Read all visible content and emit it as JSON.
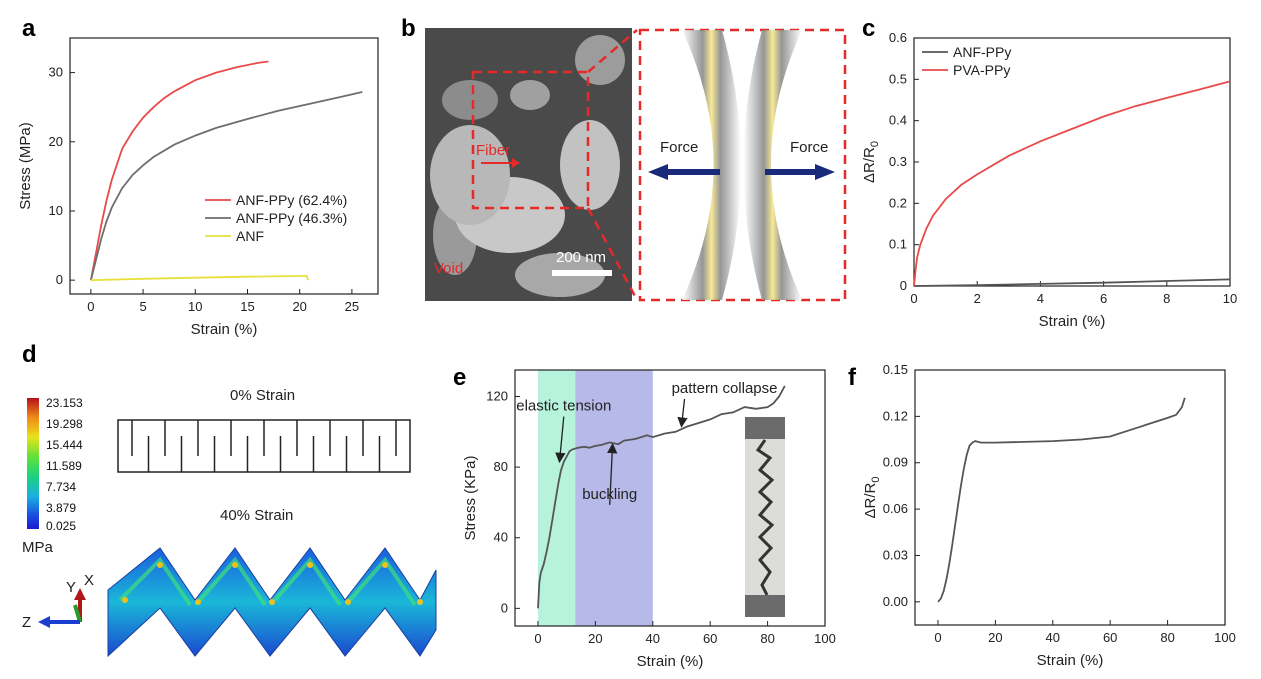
{
  "panels": {
    "a": "a",
    "b": "b",
    "c": "c",
    "d": "d",
    "e": "e",
    "f": "f"
  },
  "chart_data": [
    {
      "panel": "a",
      "type": "line",
      "xlabel": "Strain (%)",
      "ylabel": "Stress (MPa)",
      "xlim": [
        -2,
        27.5
      ],
      "ylim": [
        -2,
        35
      ],
      "xticks": [
        0,
        5,
        10,
        15,
        20,
        25
      ],
      "yticks": [
        0,
        10,
        20,
        30
      ],
      "legend": "center-right",
      "series": [
        {
          "name": "ANF-PPy (62.4%)",
          "color": "#e84a4a",
          "x": [
            0,
            0.5,
            1,
            1.5,
            2,
            3,
            4,
            5,
            6,
            7,
            8,
            10,
            12,
            14,
            16,
            17
          ],
          "y": [
            0,
            4,
            8,
            11.5,
            14.5,
            19,
            21.5,
            23.5,
            25,
            26.3,
            27.3,
            28.9,
            30,
            30.8,
            31.4,
            31.6
          ]
        },
        {
          "name": "ANF-PPy (46.3%)",
          "color": "#6e6e6e",
          "x": [
            0,
            0.5,
            1,
            1.5,
            2,
            3,
            4,
            5,
            6,
            8,
            10,
            12,
            15,
            18,
            21,
            24,
            26
          ],
          "y": [
            0,
            3,
            6,
            8.5,
            10.5,
            13.3,
            15.2,
            16.6,
            17.8,
            19.6,
            20.9,
            22,
            23.3,
            24.5,
            25.5,
            26.5,
            27.2
          ]
        },
        {
          "name": "ANF",
          "color": "#e8e03a",
          "x": [
            0,
            5,
            10,
            15,
            20,
            20.7,
            20.8
          ],
          "y": [
            0,
            0.2,
            0.35,
            0.5,
            0.6,
            0.6,
            0
          ]
        }
      ]
    },
    {
      "panel": "c",
      "type": "line",
      "xlabel": "Strain (%)",
      "ylabel": "ΔR/R",
      "ylabel_sub": "0",
      "xlim": [
        0,
        10
      ],
      "ylim": [
        0,
        0.6
      ],
      "xticks": [
        0,
        2,
        4,
        6,
        8,
        10
      ],
      "yticks": [
        0.0,
        0.1,
        0.2,
        0.3,
        0.4,
        0.5,
        0.6
      ],
      "legend": "top-left",
      "series": [
        {
          "name": "ANF-PPy",
          "color": "#555555",
          "x": [
            0,
            2,
            4,
            6,
            8,
            10
          ],
          "y": [
            0,
            0.002,
            0.005,
            0.008,
            0.012,
            0.016
          ]
        },
        {
          "name": "PVA-PPy",
          "color": "#e84a4a",
          "x": [
            0,
            0.05,
            0.1,
            0.2,
            0.4,
            0.6,
            1,
            1.5,
            2,
            3,
            4,
            5,
            6,
            7,
            8,
            9,
            10
          ],
          "y": [
            0,
            0.04,
            0.07,
            0.1,
            0.14,
            0.17,
            0.21,
            0.245,
            0.27,
            0.315,
            0.35,
            0.38,
            0.41,
            0.435,
            0.455,
            0.475,
            0.495
          ]
        }
      ]
    },
    {
      "panel": "e",
      "type": "line",
      "xlabel": "Strain (%)",
      "ylabel": "Stress (KPa)",
      "xlim": [
        -8,
        100
      ],
      "ylim": [
        -10,
        135
      ],
      "xticks": [
        0,
        20,
        40,
        60,
        80,
        100
      ],
      "yticks": [
        0,
        40,
        80,
        120
      ],
      "bands": [
        {
          "from": 0,
          "to": 13,
          "color": "#b6f2dc"
        },
        {
          "from": 13,
          "to": 40,
          "color": "#b7b9e8"
        }
      ],
      "annotations": [
        {
          "text": "elastic tension",
          "x": 9,
          "y": 112,
          "arrow_to": [
            7.5,
            83
          ]
        },
        {
          "text": "buckling",
          "x": 25,
          "y": 62,
          "arrow_to": [
            26,
            93
          ]
        },
        {
          "text": "pattern collapse",
          "x": 65,
          "y": 122,
          "arrow_to": [
            50,
            103
          ]
        }
      ],
      "series": [
        {
          "name": "",
          "color": "#555555",
          "x": [
            0,
            0.5,
            1,
            2,
            3,
            4,
            5,
            6,
            7,
            8,
            9,
            10,
            11,
            12,
            14,
            16,
            18,
            20,
            22,
            25,
            28,
            30,
            34,
            38,
            40,
            44,
            48,
            52,
            56,
            60,
            64,
            68,
            72,
            76,
            80,
            82,
            84,
            86
          ],
          "y": [
            0,
            15,
            20,
            25,
            32,
            40,
            50,
            60,
            70,
            78,
            83,
            86,
            89,
            90,
            91,
            91.5,
            91,
            92,
            92.5,
            94,
            93,
            95,
            96,
            98,
            97,
            99,
            100,
            103,
            105,
            107,
            110,
            111,
            114,
            113,
            114,
            116,
            120,
            126
          ]
        }
      ]
    },
    {
      "panel": "f",
      "type": "line",
      "xlabel": "Strain (%)",
      "ylabel": "ΔR/R",
      "ylabel_sub": "0",
      "xlim": [
        -8,
        100
      ],
      "ylim": [
        -0.015,
        0.15
      ],
      "xticks": [
        0,
        20,
        40,
        60,
        80,
        100
      ],
      "yticks": [
        0.0,
        0.03,
        0.06,
        0.09,
        0.12,
        0.15
      ],
      "ytick_labels": [
        "0.00",
        "0.03",
        "0.06",
        "0.09",
        "0.12",
        "0.15"
      ],
      "series": [
        {
          "name": "",
          "color": "#555555",
          "x": [
            0,
            1,
            2,
            3,
            4,
            5,
            6,
            7,
            8,
            9,
            10,
            11,
            12,
            13,
            15,
            20,
            30,
            40,
            50,
            55,
            60,
            65,
            70,
            75,
            80,
            83,
            85,
            86
          ],
          "y": [
            0,
            0.002,
            0.007,
            0.015,
            0.025,
            0.037,
            0.05,
            0.063,
            0.075,
            0.086,
            0.095,
            0.101,
            0.103,
            0.104,
            0.103,
            0.103,
            0.1035,
            0.104,
            0.105,
            0.106,
            0.107,
            0.11,
            0.113,
            0.116,
            0.119,
            0.121,
            0.126,
            0.132
          ]
        }
      ]
    }
  ],
  "panel_b": {
    "fiber_label": "Fiber",
    "void_label": "Void",
    "scale_label": "200 nm",
    "force_left": "Force",
    "force_right": "Force"
  },
  "panel_d": {
    "strain0": "0% Strain",
    "strain40": "40% Strain",
    "colorbar_labels": [
      "23.153",
      "19.298",
      "15.444",
      "11.589",
      "7.734",
      "3.879",
      "0.025"
    ],
    "colorbar_unit": "MPa",
    "axis_y": "Y",
    "axis_x": "X",
    "axis_z": "Z"
  }
}
